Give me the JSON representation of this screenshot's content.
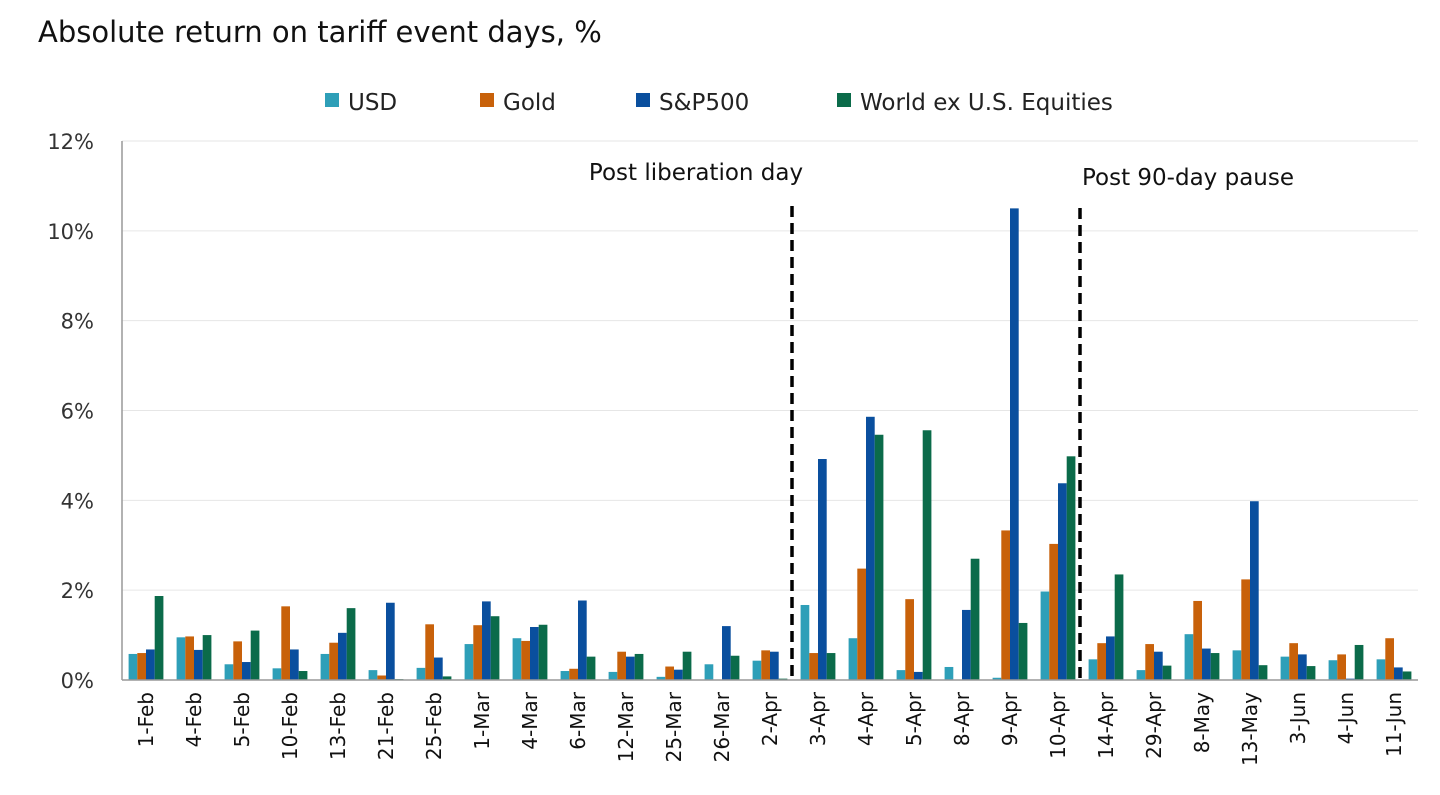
{
  "chart_data": {
    "type": "bar",
    "title": "Absolute return on tariff event days, %",
    "xlabel": "",
    "ylabel": "",
    "ylim": [
      0,
      12
    ],
    "yticks": [
      "0%",
      "2%",
      "4%",
      "6%",
      "8%",
      "10%",
      "12%"
    ],
    "grid": true,
    "legend": "top",
    "categories": [
      "1-Feb",
      "4-Feb",
      "5-Feb",
      "10-Feb",
      "13-Feb",
      "21-Feb",
      "25-Feb",
      "1-Mar",
      "4-Mar",
      "6-Mar",
      "12-Mar",
      "25-Mar",
      "26-Mar",
      "2-Apr",
      "3-Apr",
      "4-Apr",
      "5-Apr",
      "8-Apr",
      "9-Apr",
      "10-Apr",
      "14-Apr",
      "29-Apr",
      "8-May",
      "13-May",
      "3-Jun",
      "4-Jun",
      "11-Jun"
    ],
    "series": [
      {
        "name": "USD",
        "color": "#2e9fb8",
        "values": [
          0.58,
          0.95,
          0.35,
          0.26,
          0.58,
          0.22,
          0.27,
          0.8,
          0.93,
          0.2,
          0.18,
          0.07,
          0.35,
          0.43,
          1.67,
          0.93,
          0.22,
          0.29,
          0.05,
          1.97,
          0.46,
          0.22,
          1.02,
          0.66,
          0.52,
          0.44,
          0.46
        ]
      },
      {
        "name": "Gold",
        "color": "#c8610a",
        "values": [
          0.6,
          0.97,
          0.86,
          1.64,
          0.83,
          0.1,
          1.24,
          1.22,
          0.87,
          0.25,
          0.63,
          0.3,
          0.01,
          0.66,
          0.6,
          2.48,
          1.8,
          0.0,
          3.33,
          3.03,
          0.82,
          0.8,
          1.76,
          2.24,
          0.82,
          0.57,
          0.93
        ]
      },
      {
        "name": "S&P500",
        "color": "#0a4f9e",
        "values": [
          0.68,
          0.67,
          0.4,
          0.68,
          1.05,
          1.72,
          0.5,
          1.75,
          1.18,
          1.77,
          0.52,
          0.23,
          1.2,
          0.63,
          4.92,
          5.86,
          0.18,
          1.56,
          10.5,
          4.38,
          0.97,
          0.63,
          0.7,
          3.98,
          0.57,
          0.03,
          0.28
        ]
      },
      {
        "name": "World ex U.S. Equities",
        "color": "#0b6b4a",
        "values": [
          1.87,
          1.0,
          1.1,
          0.2,
          1.6,
          0.02,
          0.08,
          1.42,
          1.23,
          0.52,
          0.58,
          0.63,
          0.54,
          0.03,
          0.6,
          5.46,
          5.56,
          2.7,
          1.27,
          4.98,
          2.35,
          0.32,
          0.6,
          0.33,
          0.31,
          0.78,
          0.19
        ]
      }
    ],
    "annotations": [
      {
        "text": "Post liberation day",
        "after_category": "2-Apr"
      },
      {
        "text": "Post 90-day pause",
        "after_category": "10-Apr"
      }
    ]
  }
}
